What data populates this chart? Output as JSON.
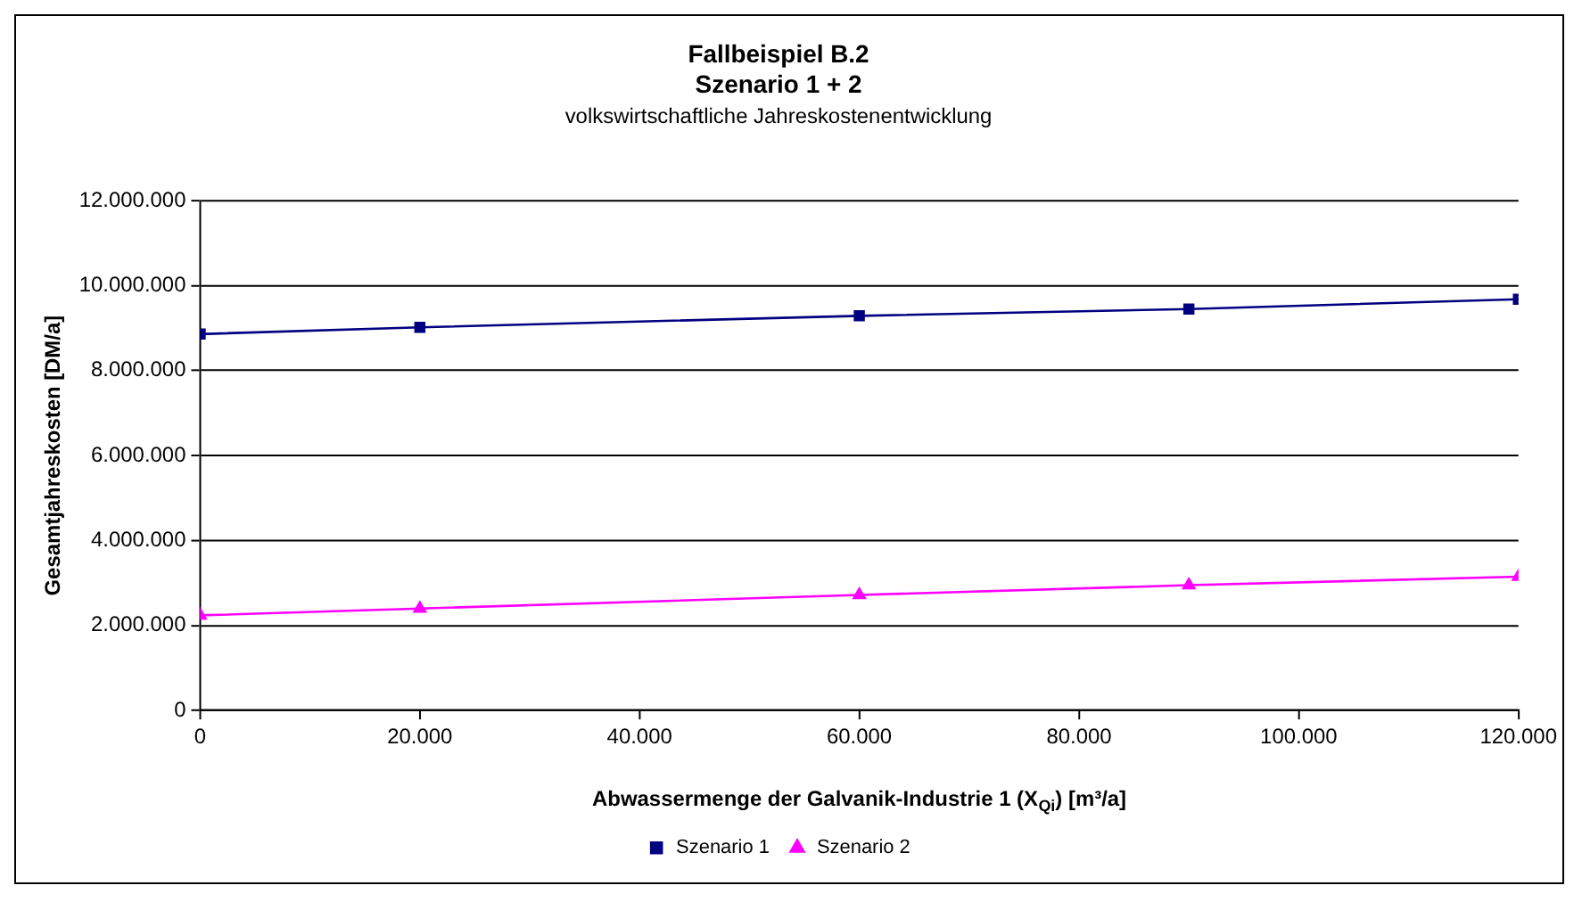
{
  "chart_data": {
    "type": "line",
    "title": "Fallbeispiel B.2\nSzenario 1 + 2",
    "subtitle": "volkswirtschaftliche Jahreskostenentwicklung",
    "xlabel": "Abwassermenge der Galvanik-Industrie 1 (X$_{Qi}$) [m³/a]",
    "ylabel": "Gesamtjahreskosten [DM/a]",
    "x": [
      0,
      20000,
      60000,
      90000,
      120000
    ],
    "series": [
      {
        "name": "Szenario 1",
        "color": "#000080",
        "marker": "square",
        "values": [
          8860000,
          9020000,
          9290000,
          9450000,
          9680000
        ]
      },
      {
        "name": "Szenario 2",
        "color": "#ff00ff",
        "marker": "triangle",
        "values": [
          2240000,
          2400000,
          2720000,
          2950000,
          3150000
        ]
      }
    ],
    "xlim": [
      0,
      120000
    ],
    "xticks": [
      0,
      {
        "value": 20000,
        "label": "20.000"
      },
      {
        "value": 40000,
        "label": "40.000"
      },
      {
        "value": 60000,
        "label": "60.000"
      },
      {
        "value": 80000,
        "label": "80.000"
      },
      {
        "value": 100000,
        "label": "100.000"
      },
      {
        "value": 120000,
        "label": "120.000"
      }
    ],
    "ylim": [
      0,
      12000000
    ],
    "yticks": [
      0,
      {
        "value": 2000000,
        "label": "2.000.000"
      },
      {
        "value": 4000000,
        "label": "4.000.000"
      },
      {
        "value": 6000000,
        "label": "6.000.000"
      },
      {
        "value": 8000000,
        "label": "8.000.000"
      },
      {
        "value": 10000000,
        "label": "10.000.000"
      },
      {
        "value": 12000000,
        "label": "12.000.000"
      }
    ],
    "grid": "y",
    "legend": "bottom",
    "line_style": "solid"
  }
}
